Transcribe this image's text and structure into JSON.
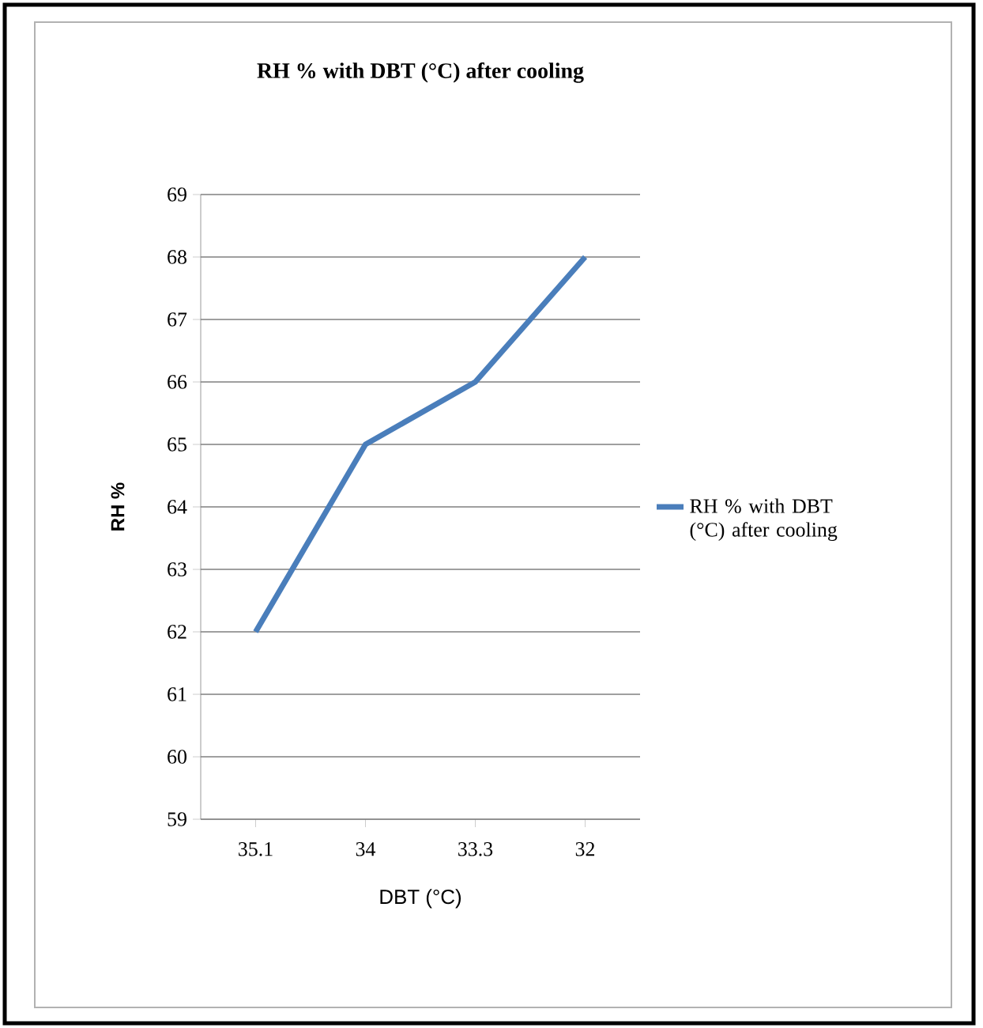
{
  "chart_data": {
    "type": "line",
    "title": "RH % with DBT (°C) after cooling",
    "xlabel": "DBT (°C)",
    "ylabel": "RH %",
    "categories": [
      "35.1",
      "34",
      "33.3",
      "32"
    ],
    "series": [
      {
        "name": "RH % with DBT (°C) after cooling",
        "color": "#4a7ebb",
        "values": [
          62,
          65,
          66,
          68
        ]
      }
    ],
    "ylim": [
      59,
      69
    ],
    "yticks": [
      59,
      60,
      61,
      62,
      63,
      64,
      65,
      66,
      67,
      68,
      69
    ],
    "grid": "y",
    "legend": "right",
    "marker": "none",
    "line_style": "solid"
  }
}
